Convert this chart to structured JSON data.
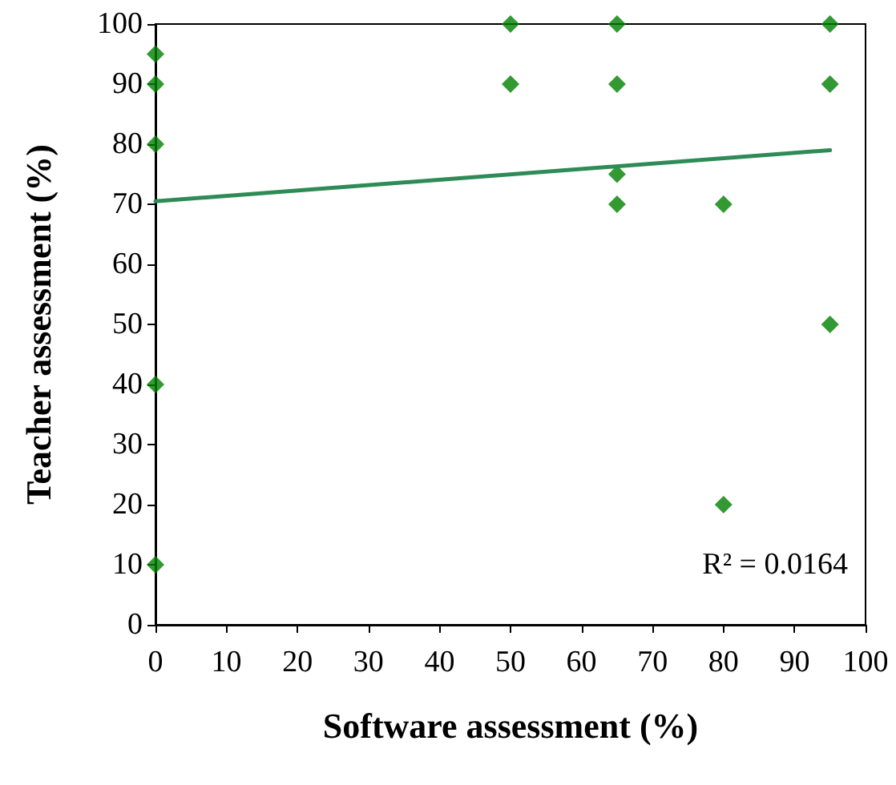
{
  "chart_data": {
    "type": "scatter",
    "xlabel": "Software assessment (%)",
    "ylabel": "Teacher assessment (%)",
    "xlim": [
      0,
      100
    ],
    "ylim": [
      0,
      100
    ],
    "xticks": [
      0,
      10,
      20,
      30,
      40,
      50,
      60,
      70,
      80,
      90,
      100
    ],
    "yticks": [
      0,
      10,
      20,
      30,
      40,
      50,
      60,
      70,
      80,
      90,
      100
    ],
    "grid": false,
    "marker": "diamond",
    "annotations": [
      "R² = 0.0164"
    ],
    "series": [
      {
        "type": "scatter",
        "color": "#008000",
        "x": [
          0,
          0,
          0,
          0,
          0,
          50,
          50,
          65,
          65,
          65,
          65,
          80,
          80,
          95,
          95,
          95
        ],
        "values": [
          95,
          90,
          80,
          40,
          10,
          100,
          90,
          100,
          90,
          75,
          70,
          70,
          20,
          100,
          90,
          50
        ]
      },
      {
        "type": "line",
        "color": "#2e8b57",
        "line_style": "solid",
        "marker": "none",
        "x": [
          0,
          95
        ],
        "values": [
          70.5,
          79
        ]
      }
    ]
  }
}
